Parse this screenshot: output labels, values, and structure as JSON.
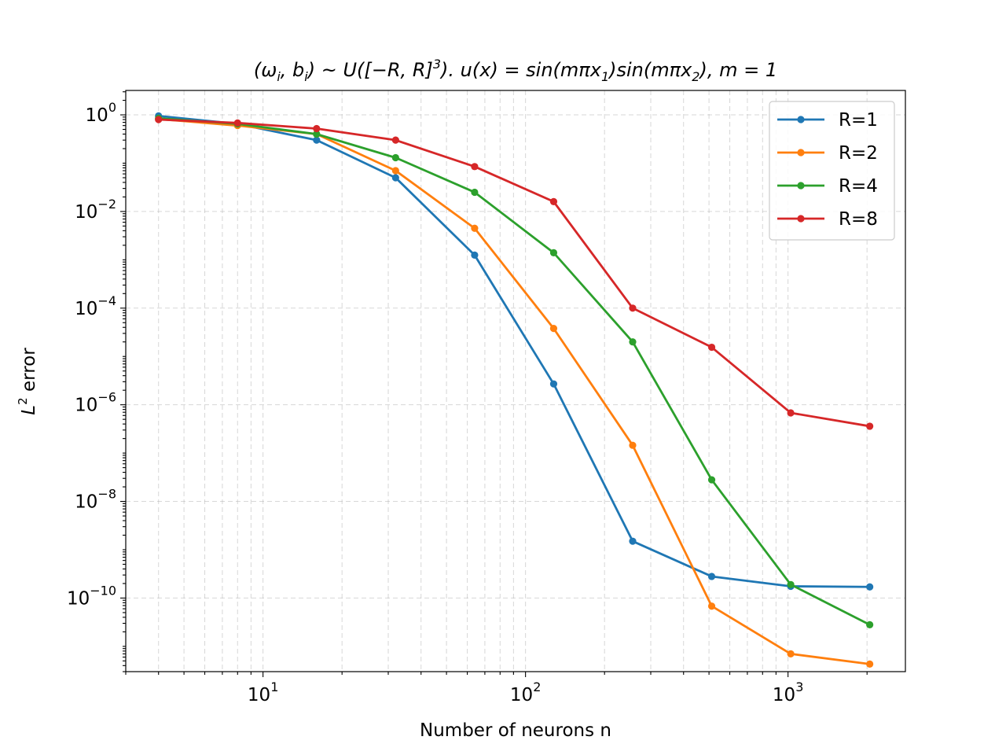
{
  "chart_data": {
    "type": "line",
    "title": "(ωi, bi) ~ U([−R, R]3). u(x) = sin(mπx1)sin(mπx2), m = 1",
    "title_parts": {
      "p1": "(ω",
      "p1_sub": "i",
      "p2": ", b",
      "p2_sub": "i",
      "p3": ") ~ U([−R, R]",
      "p3_sup": "3",
      "p4": "). u(x) = sin(mπx",
      "p4_sub": "1",
      "p5": ")sin(mπx",
      "p5_sub": "2",
      "p6": "), m = 1"
    },
    "xlabel": "Number of neurons n",
    "ylabel": "L2 error",
    "ylabel_parts": {
      "base": "L",
      "sup": "2",
      "rest": " error"
    },
    "xscale": "log",
    "yscale": "log",
    "xlim": [
      3.0,
      2800
    ],
    "ylim": [
      3e-12,
      3.2
    ],
    "x_ticks": [
      {
        "value": 10,
        "base": "10",
        "exp": "1"
      },
      {
        "value": 100,
        "base": "10",
        "exp": "2"
      },
      {
        "value": 1000,
        "base": "10",
        "exp": "3"
      }
    ],
    "y_ticks": [
      {
        "value": 1,
        "base": "10",
        "exp": "0"
      },
      {
        "value": 0.01,
        "base": "10",
        "exp": "−2"
      },
      {
        "value": 0.0001,
        "base": "10",
        "exp": "−4"
      },
      {
        "value": 1e-06,
        "base": "10",
        "exp": "−6"
      },
      {
        "value": 1e-08,
        "base": "10",
        "exp": "−8"
      },
      {
        "value": 1e-10,
        "base": "10",
        "exp": "−10"
      }
    ],
    "grid": true,
    "legend_position": "top-right",
    "x": [
      4,
      8,
      16,
      32,
      64,
      128,
      256,
      512,
      1024,
      2048
    ],
    "series": [
      {
        "name": "R=1",
        "color": "#1f77b4",
        "values": [
          0.95,
          0.65,
          0.3,
          0.05,
          0.00125,
          2.7e-06,
          1.5e-09,
          2.8e-10,
          1.75e-10,
          1.7e-10
        ]
      },
      {
        "name": "R=2",
        "color": "#ff7f0e",
        "values": [
          0.82,
          0.6,
          0.4,
          0.07,
          0.0045,
          3.8e-05,
          1.45e-07,
          6.8e-11,
          7e-12,
          4.3e-12
        ]
      },
      {
        "name": "R=4",
        "color": "#2ca02c",
        "values": [
          0.85,
          0.65,
          0.4,
          0.13,
          0.025,
          0.0014,
          2e-05,
          2.8e-08,
          1.9e-10,
          2.8e-11
        ]
      },
      {
        "name": "R=8",
        "color": "#d62728",
        "values": [
          0.8,
          0.68,
          0.52,
          0.3,
          0.085,
          0.016,
          0.0001,
          1.55e-05,
          6.8e-07,
          3.6e-07
        ]
      }
    ]
  }
}
